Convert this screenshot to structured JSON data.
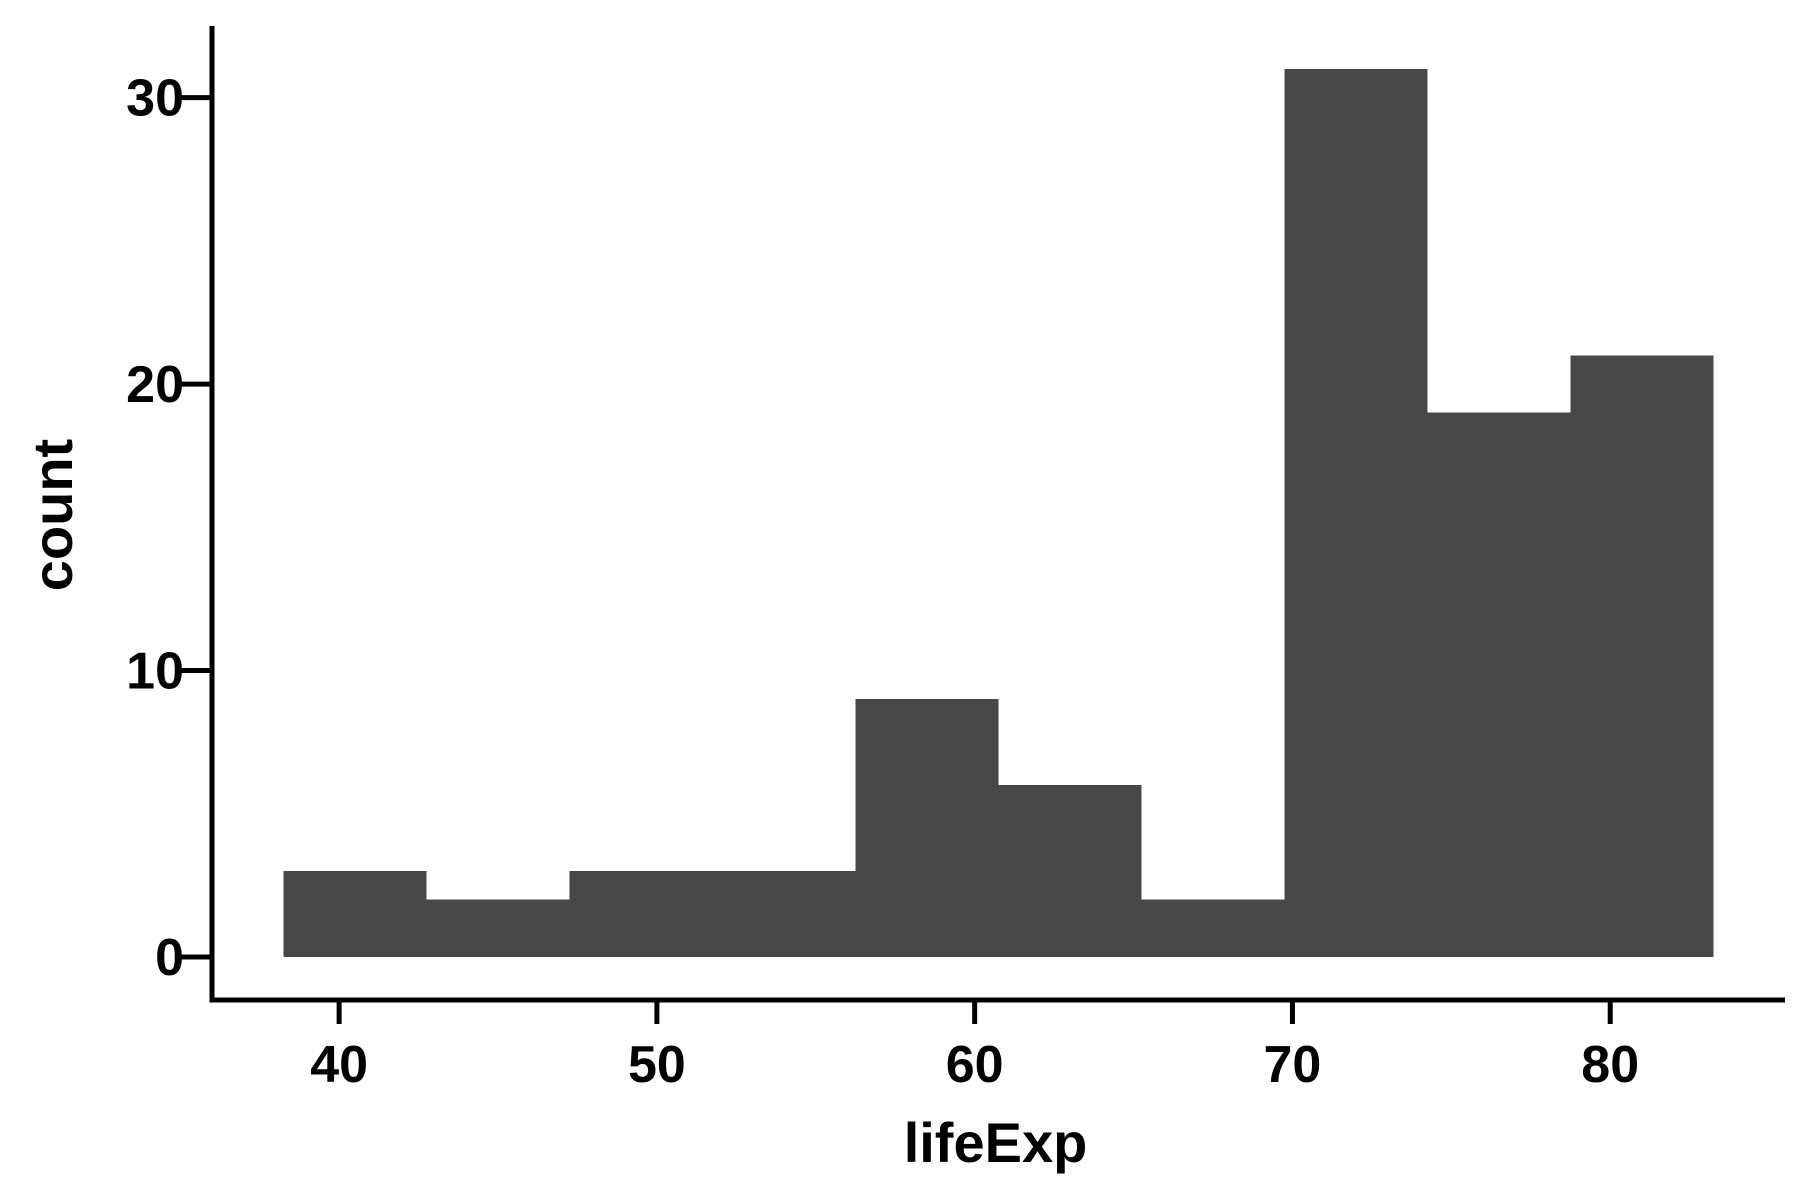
{
  "chart_data": {
    "type": "bar",
    "subtype": "histogram",
    "bin_edges": [
      38.25,
      42.75,
      47.25,
      51.75,
      56.25,
      60.75,
      65.25,
      69.75,
      74.25,
      78.75,
      83.25
    ],
    "values": [
      3,
      2,
      3,
      3,
      9,
      6,
      2,
      31,
      19,
      21
    ],
    "xlabel": "lifeExp",
    "ylabel": "count",
    "xlim": [
      36.0,
      85.5
    ],
    "ylim": [
      -1.5,
      32.5
    ],
    "x_ticks": [
      40,
      50,
      60,
      70,
      80
    ],
    "y_ticks": [
      0,
      10,
      20,
      30
    ],
    "grid": false,
    "bar_color": "#474747",
    "axis_color": "#000000"
  }
}
